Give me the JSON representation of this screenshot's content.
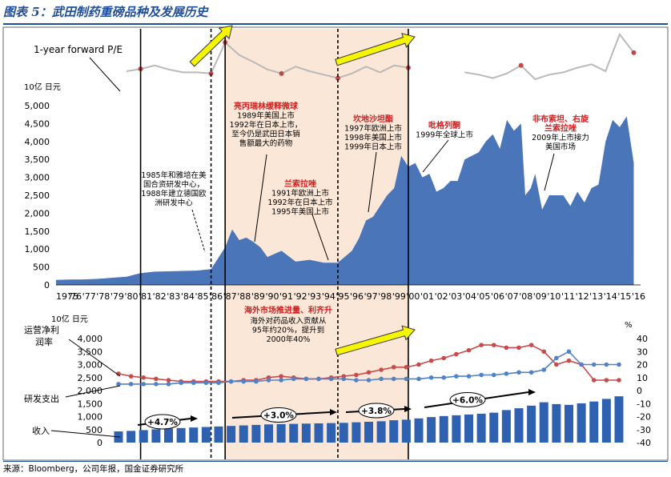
{
  "header": {
    "title": "图表 5：武田制药重磅品种及发展历史"
  },
  "source": "来源：Bloomberg，公司年报，国金证券研究所",
  "colors": {
    "area": "#4a75b8",
    "pe": "#b9b9b9",
    "pe_dot": "#c04848",
    "shade": "#fbe7d8",
    "arrow": "#f5f500",
    "bar": "#2e62b0",
    "margin": "#c84a4a",
    "rd": "#4f82c8"
  },
  "chart_data": [
    {
      "type": "line",
      "name": "pe",
      "label": "1-year forward P/E",
      "x": [
        1975,
        1976,
        1977,
        1978,
        1979,
        1980,
        1981,
        1982,
        1983,
        1984,
        1985,
        1986,
        1987,
        1988,
        1989,
        1990,
        1991,
        1992,
        1993,
        1994,
        1995,
        1996,
        1997,
        1998,
        1999,
        2000,
        2001,
        2002,
        2003,
        2004,
        2005,
        2006,
        2007,
        2008,
        2009,
        2010,
        2011,
        2012,
        2013,
        2014,
        2015,
        2016
      ],
      "values": [
        null,
        null,
        null,
        null,
        null,
        0.32,
        0.36,
        0.42,
        0.35,
        0.3,
        0.3,
        0.28,
        0.82,
        0.6,
        0.48,
        0.35,
        0.28,
        0.4,
        0.32,
        0.26,
        0.2,
        0.28,
        0.4,
        0.3,
        0.42,
        0.38,
        null,
        null,
        null,
        0.3,
        0.26,
        0.2,
        0.28,
        0.42,
        0.18,
        0.26,
        0.3,
        0.38,
        0.44,
        0.32,
        0.96,
        0.64
      ]
    },
    {
      "type": "area",
      "name": "market_cap",
      "ylabel": "10亿 日元",
      "ylim": [
        0,
        5000
      ],
      "yticks": [
        "0",
        "500",
        "1,000",
        "1,500",
        "2,000",
        "2,500",
        "3,000",
        "3,500",
        "4,000",
        "4,500",
        "5,000"
      ],
      "xticks": [
        "1975",
        "'76",
        "'77",
        "'78",
        "'79",
        "'80",
        "'81",
        "'82",
        "'83",
        "'84",
        "'85",
        "'86",
        "'87",
        "'88",
        "'89",
        "'90",
        "'91",
        "'92",
        "'93",
        "'94",
        "'95",
        "'96",
        "'97",
        "'98",
        "'99",
        "'00",
        "'01",
        "'02",
        "'03",
        "'04",
        "'05",
        "'06",
        "'07",
        "'08",
        "'09",
        "'10",
        "'11",
        "'12",
        "'13",
        "'14",
        "'15",
        "'16"
      ],
      "x": [
        1975,
        1976,
        1977,
        1978,
        1979,
        1980,
        1981,
        1982,
        1983,
        1984,
        1985,
        1986,
        1987,
        1987.5,
        1988,
        1988.5,
        1989,
        1989.5,
        1990,
        1991,
        1992,
        1993,
        1994,
        1995,
        1996,
        1996.5,
        1997,
        1997.5,
        1998,
        1998.5,
        1999,
        1999.5,
        2000,
        2000.5,
        2001,
        2001.5,
        2002,
        2002.5,
        2003,
        2003.5,
        2004,
        2005,
        2005.5,
        2006,
        2006.5,
        2007,
        2007.5,
        2008,
        2008.3,
        2008.7,
        2009,
        2009.5,
        2010,
        2011,
        2011.5,
        2012,
        2012.5,
        2013,
        2013.5,
        2014,
        2014.5,
        2015,
        2015.5,
        2016
      ],
      "values": [
        140,
        150,
        155,
        170,
        200,
        230,
        330,
        370,
        380,
        390,
        400,
        440,
        1050,
        1550,
        1250,
        1320,
        1200,
        1050,
        780,
        950,
        650,
        700,
        620,
        620,
        950,
        1300,
        1800,
        1900,
        2200,
        2500,
        2700,
        3600,
        3300,
        3400,
        3000,
        3100,
        2600,
        2700,
        2900,
        2900,
        3500,
        3700,
        4000,
        4200,
        3800,
        4600,
        4300,
        4500,
        2500,
        2700,
        3100,
        2100,
        2500,
        2500,
        2200,
        2600,
        2300,
        2700,
        2800,
        4000,
        4600,
        4400,
        4700,
        3400
      ],
      "shaded": [
        [
          1987,
          1995
        ],
        [
          1995,
          2000
        ]
      ],
      "vlines": [
        1981,
        1986,
        1987,
        1995,
        2000
      ],
      "annotations": [
        {
          "id": "a1",
          "title": "",
          "lines": [
            "1985年和雅培在美",
            "国合资研发中心，",
            "1988年建立德国欧",
            "洲研发中心"
          ]
        },
        {
          "id": "a2",
          "title": "亮丙瑞林缓释微球",
          "lines": [
            "1989年美国上市",
            "1992年在日本上市，",
            "至今仍是武田日本销",
            "售额最大的药物"
          ]
        },
        {
          "id": "a3",
          "title": "兰索拉唑",
          "lines": [
            "1991年欧洲上市",
            "1992年在日本上市",
            "1995年美国上市"
          ]
        },
        {
          "id": "a4",
          "title": "坎地沙坦酯",
          "lines": [
            "1997年欧洲上市",
            "1998年美国上市",
            "1999年日本上市"
          ]
        },
        {
          "id": "a5",
          "title": "吡格列酮",
          "lines": [
            "1999年全球上市"
          ]
        },
        {
          "id": "a6",
          "title": "非布索坦、右旋",
          "title2": "兰索拉唑",
          "lines": [
            "2009年上市接力",
            "美国市场"
          ]
        }
      ]
    },
    {
      "type": "bar",
      "name": "revenue",
      "ylabel": "10亿 日元",
      "ylim": [
        0,
        4000
      ],
      "yticks": [
        "0",
        "500",
        "1,000",
        "1,500",
        "2,000",
        "2,500",
        "3,000",
        "3,500",
        "4,000"
      ],
      "y2label": "%",
      "y2lim": [
        -40,
        40
      ],
      "y2ticks": [
        "-40",
        "-30",
        "-20",
        "-10",
        "0",
        "10",
        "20",
        "30",
        "40"
      ],
      "categories": [
        1975,
        1976,
        1977,
        1978,
        1979,
        1980,
        1981,
        1982,
        1983,
        1984,
        1985,
        1986,
        1987,
        1988,
        1989,
        1990,
        1991,
        1992,
        1993,
        1994,
        1995,
        1996,
        1997,
        1998,
        1999,
        2000,
        2001,
        2002,
        2003,
        2004,
        2005,
        2006,
        2007,
        2008,
        2009,
        2010,
        2011,
        2012,
        2013,
        2014,
        2015
      ],
      "values": [
        430,
        450,
        480,
        510,
        540,
        560,
        580,
        600,
        620,
        640,
        660,
        680,
        700,
        710,
        720,
        730,
        740,
        750,
        760,
        780,
        800,
        820,
        860,
        880,
        930,
        980,
        1020,
        1050,
        1080,
        1110,
        1150,
        1250,
        1320,
        1420,
        1550,
        1480,
        1450,
        1510,
        1580,
        1680,
        1780
      ],
      "margin_pct": [
        13,
        11,
        10,
        9,
        8,
        7,
        7,
        7,
        7,
        7,
        8,
        8,
        10,
        11,
        10,
        9,
        9,
        10,
        11,
        12,
        14,
        16,
        18,
        18,
        20,
        23,
        25,
        28,
        31,
        35,
        35,
        33,
        33,
        35,
        30,
        20,
        23,
        20,
        8,
        8,
        8
      ],
      "rd_pct": [
        5,
        5,
        5,
        5,
        5,
        6,
        6,
        6,
        6,
        7,
        7,
        7,
        8,
        8,
        9,
        9,
        9,
        9,
        9,
        8,
        8,
        9,
        9,
        9,
        9,
        10,
        10,
        11,
        11,
        12,
        12,
        13,
        14,
        14,
        16,
        25,
        30,
        20,
        20,
        20,
        20
      ],
      "labels": {
        "margin": "运营净利润率",
        "rd": "研发支出",
        "revenue": "收入"
      },
      "cagr": [
        "+4.7%",
        "+3.0%",
        "+3.8%",
        "+6.0%"
      ],
      "note_title": "海外市场推进量、利齐升",
      "note_lines": [
        "海外对药品收入贡献从",
        "95年约20%，提升到",
        "2000年40%"
      ]
    }
  ]
}
